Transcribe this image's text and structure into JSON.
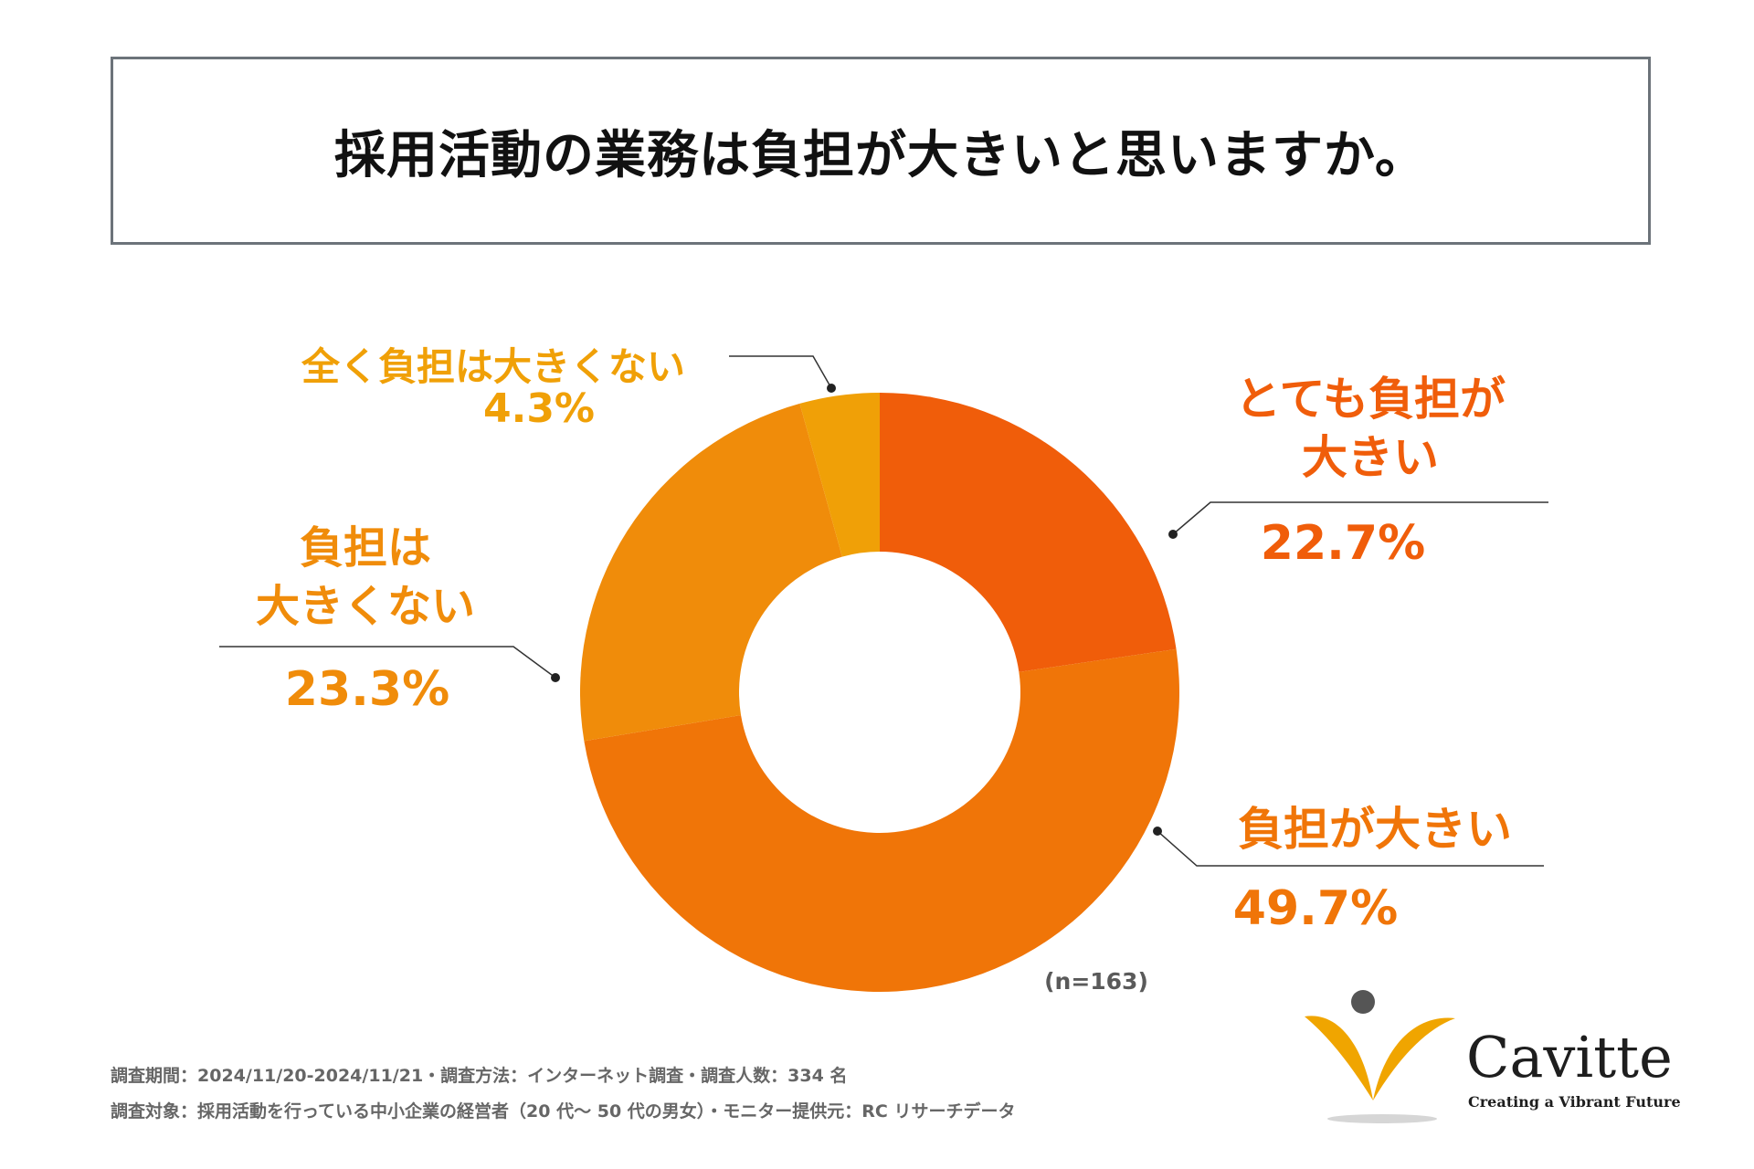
{
  "title": "採用活動の業務は負担が大きいと思いますか。",
  "chart_data": {
    "type": "pie",
    "title": "採用活動の業務は負担が大きいと思いますか。",
    "unit": "%",
    "categories": [
      "とても負担が大きい",
      "負担が大きい",
      "負担は大きくない",
      "全く負担は大きくない"
    ],
    "values": [
      22.7,
      49.7,
      23.3,
      4.3
    ],
    "value_labels": [
      "22.7%",
      "49.7%",
      "23.3%",
      "4.3%"
    ],
    "colors": [
      "#f05d0a",
      "#f07508",
      "#f08c0a",
      "#f0a007"
    ],
    "sample_note": "(n=163)"
  },
  "labels": {
    "very_large_line1": "とても負担が",
    "very_large_line2": "大きい",
    "large": "負担が大きい",
    "not_large_line1": "負担は",
    "not_large_line2": "大きくない",
    "not_at_all": "全く負担は大きくない"
  },
  "footer": {
    "line1": "調査期間：2024/11/20-2024/11/21・調査方法：インターネット調査・調査人数：334 名",
    "line2": "調査対象：採用活動を行っている中小企業の経営者（20 代～ 50 代の男女）・モニター提供元：RC リサーチデータ"
  },
  "logo": {
    "name": "Cavitte",
    "tagline": "Creating a Vibrant Future",
    "colors": {
      "accent": "#f0a500",
      "dot": "#555555"
    }
  }
}
